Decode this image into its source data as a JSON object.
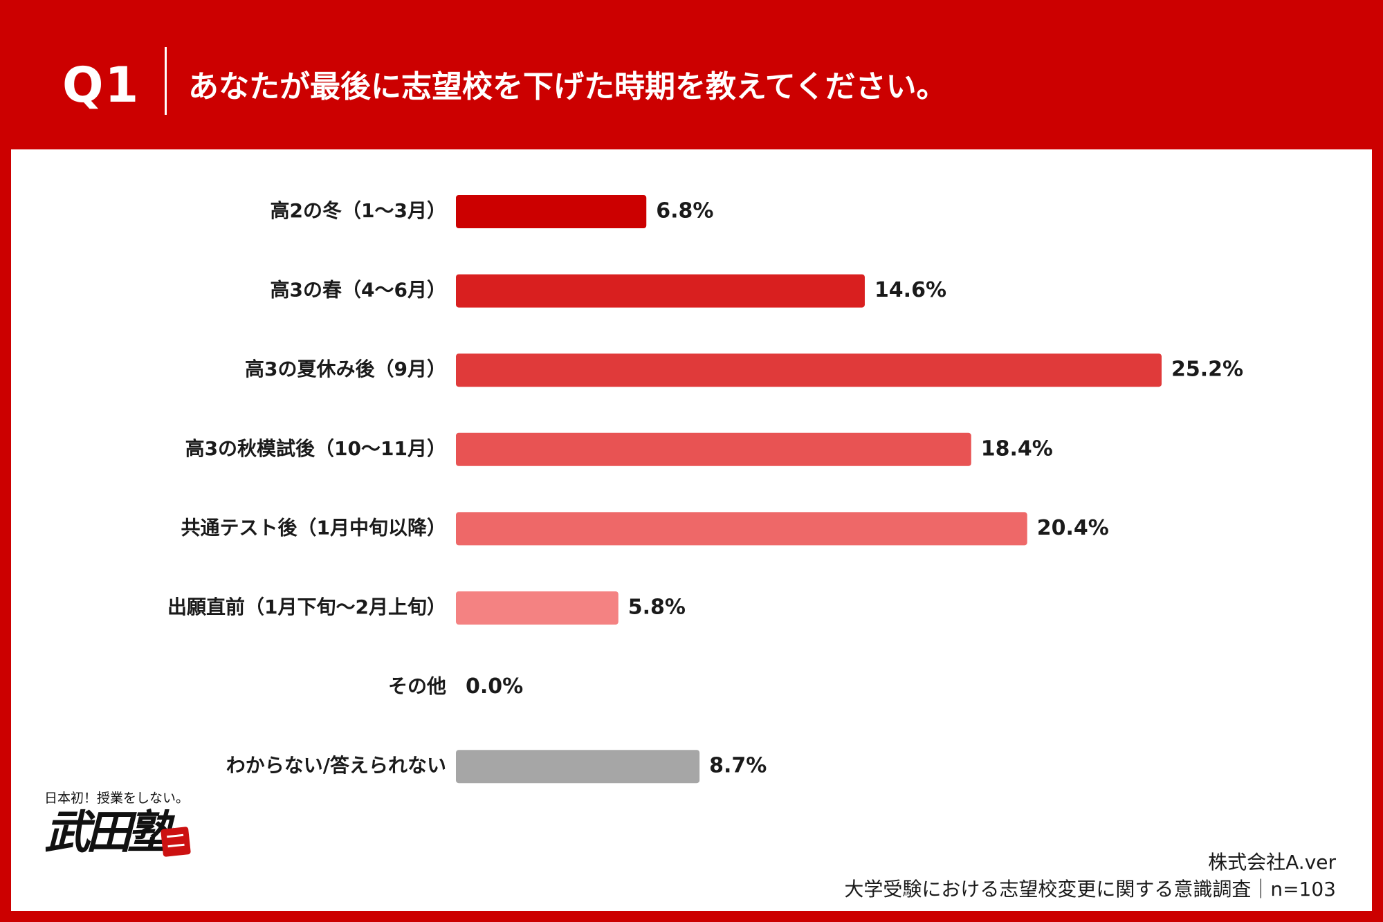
{
  "header": {
    "question_number": "Q1",
    "question_text": "あなたが最後に志望校を下げた時期を教えてください。"
  },
  "chart_data": {
    "type": "bar",
    "orientation": "horizontal",
    "categories": [
      "高2の冬（1〜3月）",
      "高3の春（4〜6月）",
      "高3の夏休み後（9月）",
      "高3の秋模試後（10〜11月）",
      "共通テスト後（1月中旬以降）",
      "出願直前（1月下旬〜2月上旬）",
      "その他",
      "わからない/答えられない"
    ],
    "values": [
      6.8,
      14.6,
      25.2,
      18.4,
      20.4,
      5.8,
      0.0,
      8.7
    ],
    "value_labels": [
      "6.8%",
      "14.6%",
      "25.2%",
      "18.4%",
      "20.4%",
      "5.8%",
      "0.0%",
      "8.7%"
    ],
    "unit": "%",
    "colors": [
      "#cc0000",
      "#d91f1f",
      "#e03a3a",
      "#e85353",
      "#ee6868",
      "#f48282",
      "#f5a0a0",
      "#a6a6a6"
    ],
    "xlim": [
      0,
      30
    ],
    "grid": false,
    "legend": "none"
  },
  "logo": {
    "tagline": "日本初！授業をしない。",
    "name": "武田塾"
  },
  "footer": {
    "company": "株式会社A.ver",
    "survey": "大学受験における志望校変更に関する意識調査｜n=103"
  }
}
